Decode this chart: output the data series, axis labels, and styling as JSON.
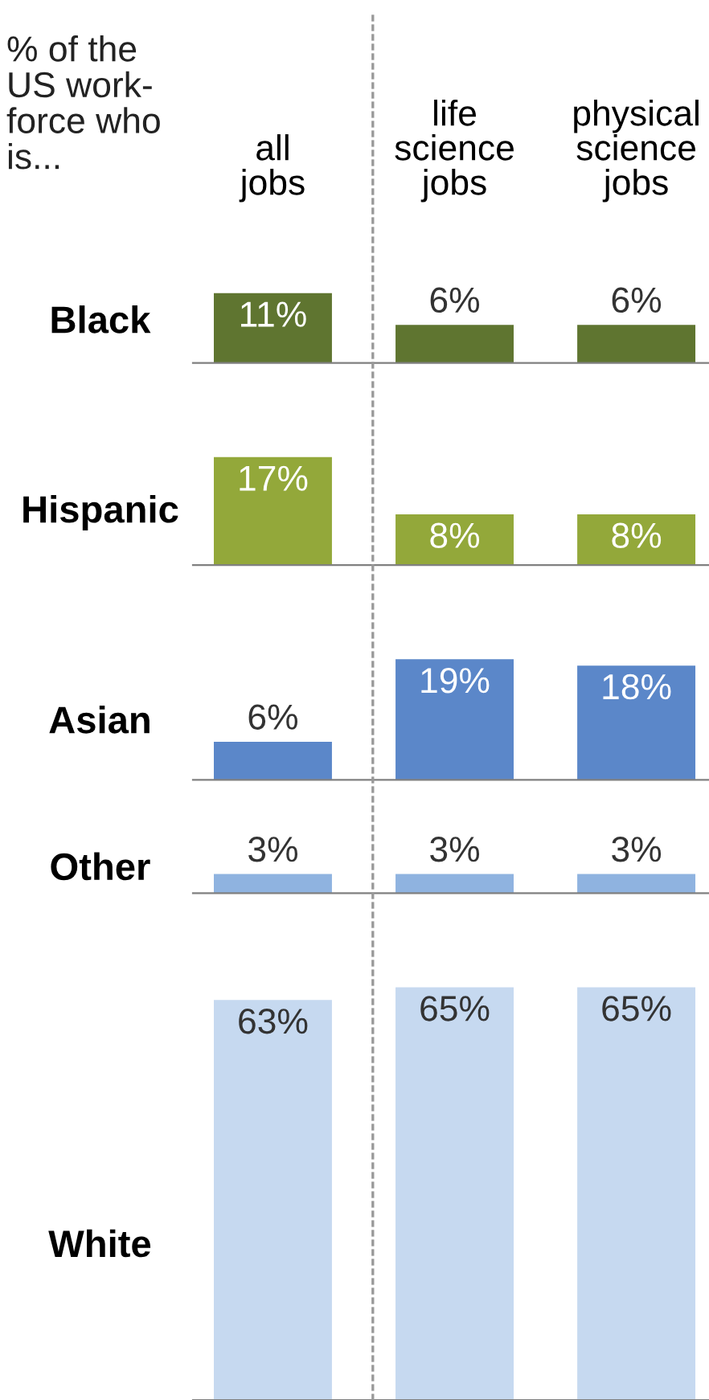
{
  "chart_data": [
    {
      "type": "bar",
      "title": "% of the US work-force who is...",
      "ylabel": "Black",
      "categories": [
        "all jobs",
        "life science jobs",
        "physical science jobs"
      ],
      "values": [
        11,
        6,
        6
      ],
      "value_labels": [
        "11%",
        "6%",
        "6%"
      ],
      "color": "#5f7530",
      "tick_labels": "x"
    },
    {
      "type": "bar",
      "ylabel": "Hispanic",
      "categories": [
        null,
        null,
        null
      ],
      "values": [
        17,
        8,
        8
      ],
      "value_labels": [
        "17%",
        "8%",
        "8%"
      ],
      "color": "#93a83a",
      "tick_labels": false
    },
    {
      "type": "bar",
      "ylabel": "Asian",
      "categories": [
        null,
        null,
        null
      ],
      "values": [
        6,
        19,
        18
      ],
      "value_labels": [
        "6%",
        "19%",
        "18%"
      ],
      "color": "#5b87c9",
      "tick_labels": false
    },
    {
      "type": "bar",
      "ylabel": "Other",
      "categories": [
        null,
        null,
        null
      ],
      "values": [
        3,
        3,
        3
      ],
      "value_labels": [
        "3%",
        "3%",
        "3%"
      ],
      "color": "#8fb3e0",
      "tick_labels": false
    },
    {
      "type": "bar",
      "ylabel": "White",
      "categories": [
        null,
        null,
        null
      ],
      "values": [
        63,
        65,
        65
      ],
      "value_labels": [
        "63%",
        "65%",
        "65%"
      ],
      "color": "#c6d9f0",
      "tick_labels": false
    }
  ]
}
